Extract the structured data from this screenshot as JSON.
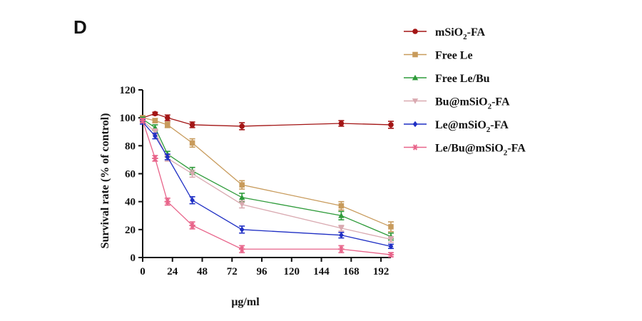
{
  "panel_label": "D",
  "chart_data": {
    "type": "line",
    "xlabel": "μg/ml",
    "ylabel": "Survival rate (% of control)",
    "xlim": [
      0,
      200
    ],
    "ylim": [
      0,
      120
    ],
    "x_ticks": [
      "0",
      "24",
      "48",
      "72",
      "96",
      "120",
      "144",
      "168",
      "192"
    ],
    "y_ticks": [
      "0",
      "20",
      "40",
      "60",
      "80",
      "100",
      "120"
    ],
    "x": [
      0,
      10,
      20,
      40,
      80,
      160,
      200
    ],
    "legend_position": "right",
    "error_bars": true,
    "series": [
      {
        "name": "mSiO2-FA",
        "name_parts": [
          "mSiO",
          "2",
          "-FA"
        ],
        "marker": "circle",
        "color": "#a31515",
        "values": [
          100,
          103,
          100,
          95,
          94,
          96,
          95
        ],
        "errors": [
          1.5,
          1,
          2,
          2,
          2.5,
          2,
          2.5
        ]
      },
      {
        "name": "Free Le",
        "name_parts": [
          "Free Le",
          "",
          ""
        ],
        "marker": "square",
        "color": "#c89b5c",
        "values": [
          100,
          98,
          95,
          82,
          52,
          37,
          22
        ],
        "errors": [
          1.5,
          1.5,
          2,
          3,
          3,
          3,
          3.5
        ]
      },
      {
        "name": "Free Le/Bu",
        "name_parts": [
          "Free Le/Bu",
          "",
          ""
        ],
        "marker": "triangle-up",
        "color": "#2e9b3a",
        "values": [
          99,
          93,
          74,
          62,
          43,
          30,
          15
        ],
        "errors": [
          1.5,
          2,
          2,
          2.5,
          3,
          3,
          2.5
        ]
      },
      {
        "name": "Bu@mSiO2-FA",
        "name_parts": [
          "Bu@mSiO",
          "2",
          "-FA"
        ],
        "marker": "triangle-down",
        "color": "#d9a9b0",
        "values": [
          98,
          90,
          71,
          60,
          38,
          21,
          13
        ],
        "errors": [
          1.5,
          2,
          2,
          2.5,
          2.5,
          2,
          2
        ]
      },
      {
        "name": "Le@mSiO2-FA",
        "name_parts": [
          "Le@mSiO",
          "2",
          "-FA"
        ],
        "marker": "diamond",
        "color": "#1f2fc4",
        "values": [
          97,
          87,
          72,
          41,
          20,
          16,
          8
        ],
        "errors": [
          1.5,
          2,
          2,
          2.5,
          2.5,
          2,
          1.5
        ]
      },
      {
        "name": "Le/Bu@mSiO2-FA",
        "name_parts": [
          "Le/Bu@mSiO",
          "2",
          "-FA"
        ],
        "marker": "star",
        "color": "#e8648a",
        "values": [
          98,
          71,
          40,
          23,
          6,
          6,
          2
        ],
        "errors": [
          1.5,
          2,
          2.5,
          2.5,
          2.5,
          2.5,
          1.5
        ]
      }
    ]
  }
}
